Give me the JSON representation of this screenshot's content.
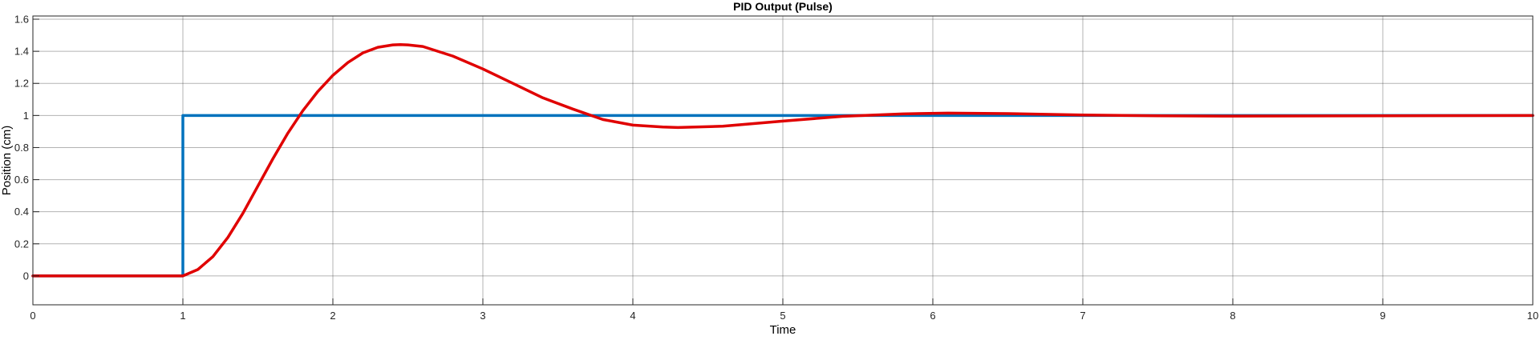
{
  "chart_data": {
    "type": "line",
    "title": "PID Output (Pulse)",
    "xlabel": "Time",
    "ylabel": "Position (cm)",
    "xlim": [
      0,
      10
    ],
    "ylim": [
      -0.18,
      1.62
    ],
    "xticks": [
      0,
      1,
      2,
      3,
      4,
      5,
      6,
      7,
      8,
      9,
      10
    ],
    "yticks": [
      0,
      0.2,
      0.4,
      0.6,
      0.8,
      1,
      1.2,
      1.4,
      1.6
    ],
    "grid": true,
    "legend": "none",
    "series": [
      {
        "color": "#0072BD",
        "x": [
          0,
          1,
          1,
          10
        ],
        "y": [
          0,
          0,
          1,
          1
        ]
      },
      {
        "color": "#E00000",
        "x": [
          0,
          1,
          1.1,
          1.2,
          1.3,
          1.4,
          1.5,
          1.6,
          1.7,
          1.8,
          1.9,
          2.0,
          2.1,
          2.2,
          2.3,
          2.4,
          2.45,
          2.5,
          2.6,
          2.8,
          3.0,
          3.2,
          3.4,
          3.6,
          3.8,
          4.0,
          4.2,
          4.3,
          4.6,
          5.0,
          5.4,
          5.8,
          6.1,
          6.5,
          7.0,
          7.5,
          8.0,
          9.0,
          10
        ],
        "y": [
          0,
          0,
          0.04,
          0.12,
          0.24,
          0.39,
          0.56,
          0.73,
          0.89,
          1.03,
          1.15,
          1.25,
          1.33,
          1.39,
          1.425,
          1.44,
          1.442,
          1.44,
          1.43,
          1.37,
          1.29,
          1.2,
          1.11,
          1.04,
          0.975,
          0.94,
          0.928,
          0.925,
          0.933,
          0.965,
          0.995,
          1.01,
          1.015,
          1.012,
          1.003,
          0.998,
          0.996,
          0.998,
          1.0
        ]
      }
    ]
  }
}
